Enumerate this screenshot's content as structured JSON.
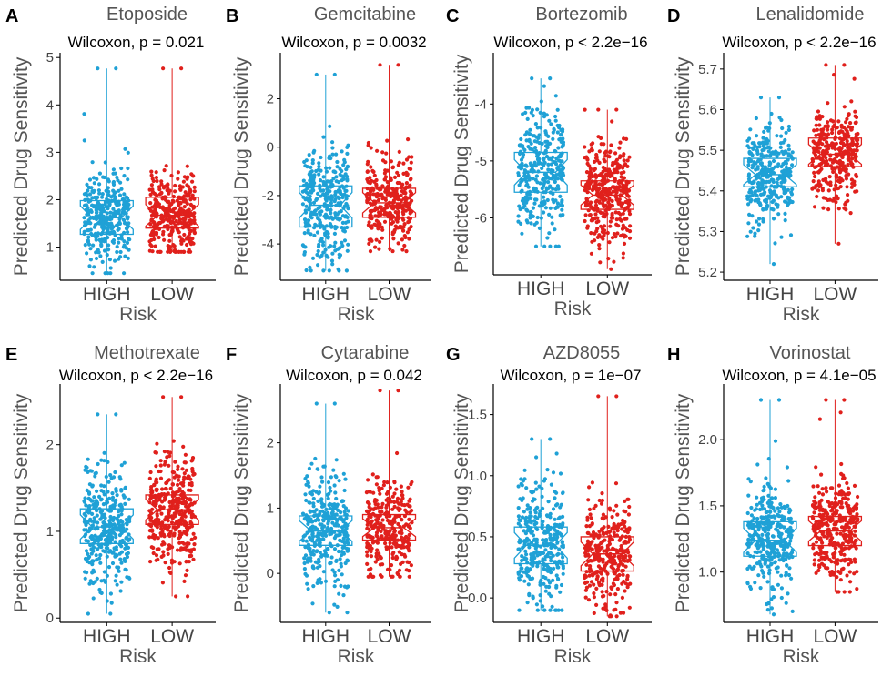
{
  "figure": {
    "colors": {
      "high": "#1FA1D6",
      "low": "#E0201C",
      "axis": "#000000",
      "text": "#555555"
    }
  },
  "chart_data": [
    {
      "type": "boxplot-jitter",
      "panel_letter": "A",
      "title": "Etoposide",
      "stat": "Wilcoxon, p = 0.021",
      "xlabel": "Risk",
      "ylabel": "Predicted Drug Sensitivity",
      "categories": [
        "HIGH",
        "LOW"
      ],
      "ylim": [
        0.3,
        5.1
      ],
      "yticks": [
        1,
        2,
        3,
        4,
        5
      ],
      "yticklabels": [
        "1",
        "2",
        "3",
        "4",
        "5"
      ],
      "series": [
        {
          "name": "HIGH",
          "q1": 1.27,
          "median": 1.62,
          "q3": 1.98,
          "min": 0.45,
          "max": 4.77,
          "n": 340,
          "spread": 0.45,
          "skew": 0.6
        },
        {
          "name": "LOW",
          "q1": 1.4,
          "median": 1.67,
          "q3": 2.05,
          "min": 0.9,
          "max": 4.77,
          "n": 340,
          "spread": 0.42,
          "skew": 0.6
        }
      ]
    },
    {
      "type": "boxplot-jitter",
      "panel_letter": "B",
      "title": "Gemcitabine",
      "stat": "Wilcoxon, p = 0.0032",
      "xlabel": "Risk",
      "ylabel": "Predicted Drug Sensitivity",
      "categories": [
        "HIGH",
        "LOW"
      ],
      "ylim": [
        -5.5,
        3.9
      ],
      "yticks": [
        -4,
        -2,
        0,
        2
      ],
      "yticklabels": [
        "-4",
        "-2",
        "0",
        "2"
      ],
      "series": [
        {
          "name": "HIGH",
          "q1": -3.3,
          "median": -2.4,
          "q3": -1.6,
          "min": -5.1,
          "max": 3.0,
          "n": 330,
          "spread": 1.2,
          "skew": 0.2
        },
        {
          "name": "LOW",
          "q1": -2.9,
          "median": -2.3,
          "q3": -1.7,
          "min": -4.3,
          "max": 3.4,
          "n": 300,
          "spread": 0.9,
          "skew": 0.2
        }
      ]
    },
    {
      "type": "boxplot-jitter",
      "panel_letter": "C",
      "title": "Bortezomib",
      "stat": "Wilcoxon, p < 2.2e−16",
      "xlabel": "Risk",
      "ylabel": "Predicted Drug Sensitivity",
      "categories": [
        "HIGH",
        "LOW"
      ],
      "ylim": [
        -7.0,
        -3.1
      ],
      "yticks": [
        -6,
        -5,
        -4
      ],
      "yticklabels": [
        "-6",
        "-5",
        "-4"
      ],
      "series": [
        {
          "name": "HIGH",
          "q1": -5.55,
          "median": -5.2,
          "q3": -4.85,
          "min": -6.5,
          "max": -3.55,
          "n": 330,
          "spread": 0.55,
          "skew": 0
        },
        {
          "name": "LOW",
          "q1": -5.85,
          "median": -5.6,
          "q3": -5.35,
          "min": -6.9,
          "max": -4.1,
          "n": 380,
          "spread": 0.45,
          "skew": 0
        }
      ]
    },
    {
      "type": "boxplot-jitter",
      "panel_letter": "D",
      "title": "Lenalidomide",
      "stat": "Wilcoxon, p < 2.2e−16",
      "xlabel": "Risk",
      "ylabel": "Predicted Drug Sensitivity",
      "categories": [
        "HIGH",
        "LOW"
      ],
      "ylim": [
        5.18,
        5.74
      ],
      "yticks": [
        5.2,
        5.3,
        5.4,
        5.5,
        5.6,
        5.7
      ],
      "yticklabels": [
        "5.2",
        "5.3",
        "5.4",
        "5.5",
        "5.6",
        "5.7"
      ],
      "series": [
        {
          "name": "HIGH",
          "q1": 5.41,
          "median": 5.44,
          "q3": 5.48,
          "min": 5.22,
          "max": 5.63,
          "n": 330,
          "spread": 0.06,
          "skew": 0
        },
        {
          "name": "LOW",
          "q1": 5.46,
          "median": 5.49,
          "q3": 5.53,
          "min": 5.27,
          "max": 5.71,
          "n": 320,
          "spread": 0.06,
          "skew": 0
        }
      ]
    },
    {
      "type": "boxplot-jitter",
      "panel_letter": "E",
      "title": "Methotrexate",
      "stat": "Wilcoxon, p < 2.2e−16",
      "xlabel": "Risk",
      "ylabel": "Predicted Drug Sensitivity",
      "categories": [
        "HIGH",
        "LOW"
      ],
      "ylim": [
        -0.05,
        2.7
      ],
      "yticks": [
        0,
        1,
        2
      ],
      "yticklabels": [
        "0",
        "1",
        "2"
      ],
      "series": [
        {
          "name": "HIGH",
          "q1": 0.86,
          "median": 1.05,
          "q3": 1.26,
          "min": 0.05,
          "max": 2.35,
          "n": 360,
          "spread": 0.35,
          "skew": 0
        },
        {
          "name": "LOW",
          "q1": 1.08,
          "median": 1.25,
          "q3": 1.42,
          "min": 0.25,
          "max": 2.55,
          "n": 380,
          "spread": 0.32,
          "skew": 0
        }
      ]
    },
    {
      "type": "boxplot-jitter",
      "panel_letter": "F",
      "title": "Cytarabine",
      "stat": "Wilcoxon, p = 0.042",
      "xlabel": "Risk",
      "ylabel": "Predicted Drug Sensitivity",
      "categories": [
        "HIGH",
        "LOW"
      ],
      "ylim": [
        -0.75,
        2.9
      ],
      "yticks": [
        0,
        1,
        2
      ],
      "yticklabels": [
        "0",
        "1",
        "2"
      ],
      "series": [
        {
          "name": "HIGH",
          "q1": 0.43,
          "median": 0.65,
          "q3": 0.88,
          "min": -0.6,
          "max": 2.6,
          "n": 340,
          "spread": 0.45,
          "skew": 0.15
        },
        {
          "name": "LOW",
          "q1": 0.51,
          "median": 0.7,
          "q3": 0.9,
          "min": -0.05,
          "max": 2.8,
          "n": 300,
          "spread": 0.4,
          "skew": 0.15
        }
      ]
    },
    {
      "type": "boxplot-jitter",
      "panel_letter": "G",
      "title": "AZD8055",
      "stat": "Wilcoxon, p = 1e−07",
      "xlabel": "Risk",
      "ylabel": "Predicted Drug Sensitivity",
      "categories": [
        "HIGH",
        "LOW"
      ],
      "ylim": [
        -0.2,
        1.75
      ],
      "yticks": [
        0,
        0.5,
        1,
        1.5
      ],
      "yticklabels": [
        "0.0",
        "0.5",
        "1.0",
        "1.5"
      ],
      "series": [
        {
          "name": "HIGH",
          "q1": 0.28,
          "median": 0.43,
          "q3": 0.58,
          "min": -0.1,
          "max": 1.3,
          "n": 330,
          "spread": 0.25,
          "skew": 0.1
        },
        {
          "name": "LOW",
          "q1": 0.22,
          "median": 0.36,
          "q3": 0.5,
          "min": -0.15,
          "max": 1.65,
          "n": 330,
          "spread": 0.22,
          "skew": 0.1
        }
      ]
    },
    {
      "type": "boxplot-jitter",
      "panel_letter": "H",
      "title": "Vorinostat",
      "stat": "Wilcoxon, p = 4.1e−05",
      "xlabel": "Risk",
      "ylabel": "Predicted Drug Sensitivity",
      "categories": [
        "HIGH",
        "LOW"
      ],
      "ylim": [
        0.62,
        2.42
      ],
      "yticks": [
        1.0,
        1.5,
        2.0
      ],
      "yticklabels": [
        "1.0",
        "1.5",
        "2.0"
      ],
      "series": [
        {
          "name": "HIGH",
          "q1": 1.12,
          "median": 1.24,
          "q3": 1.38,
          "min": 0.68,
          "max": 2.3,
          "n": 340,
          "spread": 0.2,
          "skew": 0.2
        },
        {
          "name": "LOW",
          "q1": 1.2,
          "median": 1.31,
          "q3": 1.42,
          "min": 0.85,
          "max": 2.3,
          "n": 330,
          "spread": 0.18,
          "skew": 0.2
        }
      ]
    }
  ]
}
